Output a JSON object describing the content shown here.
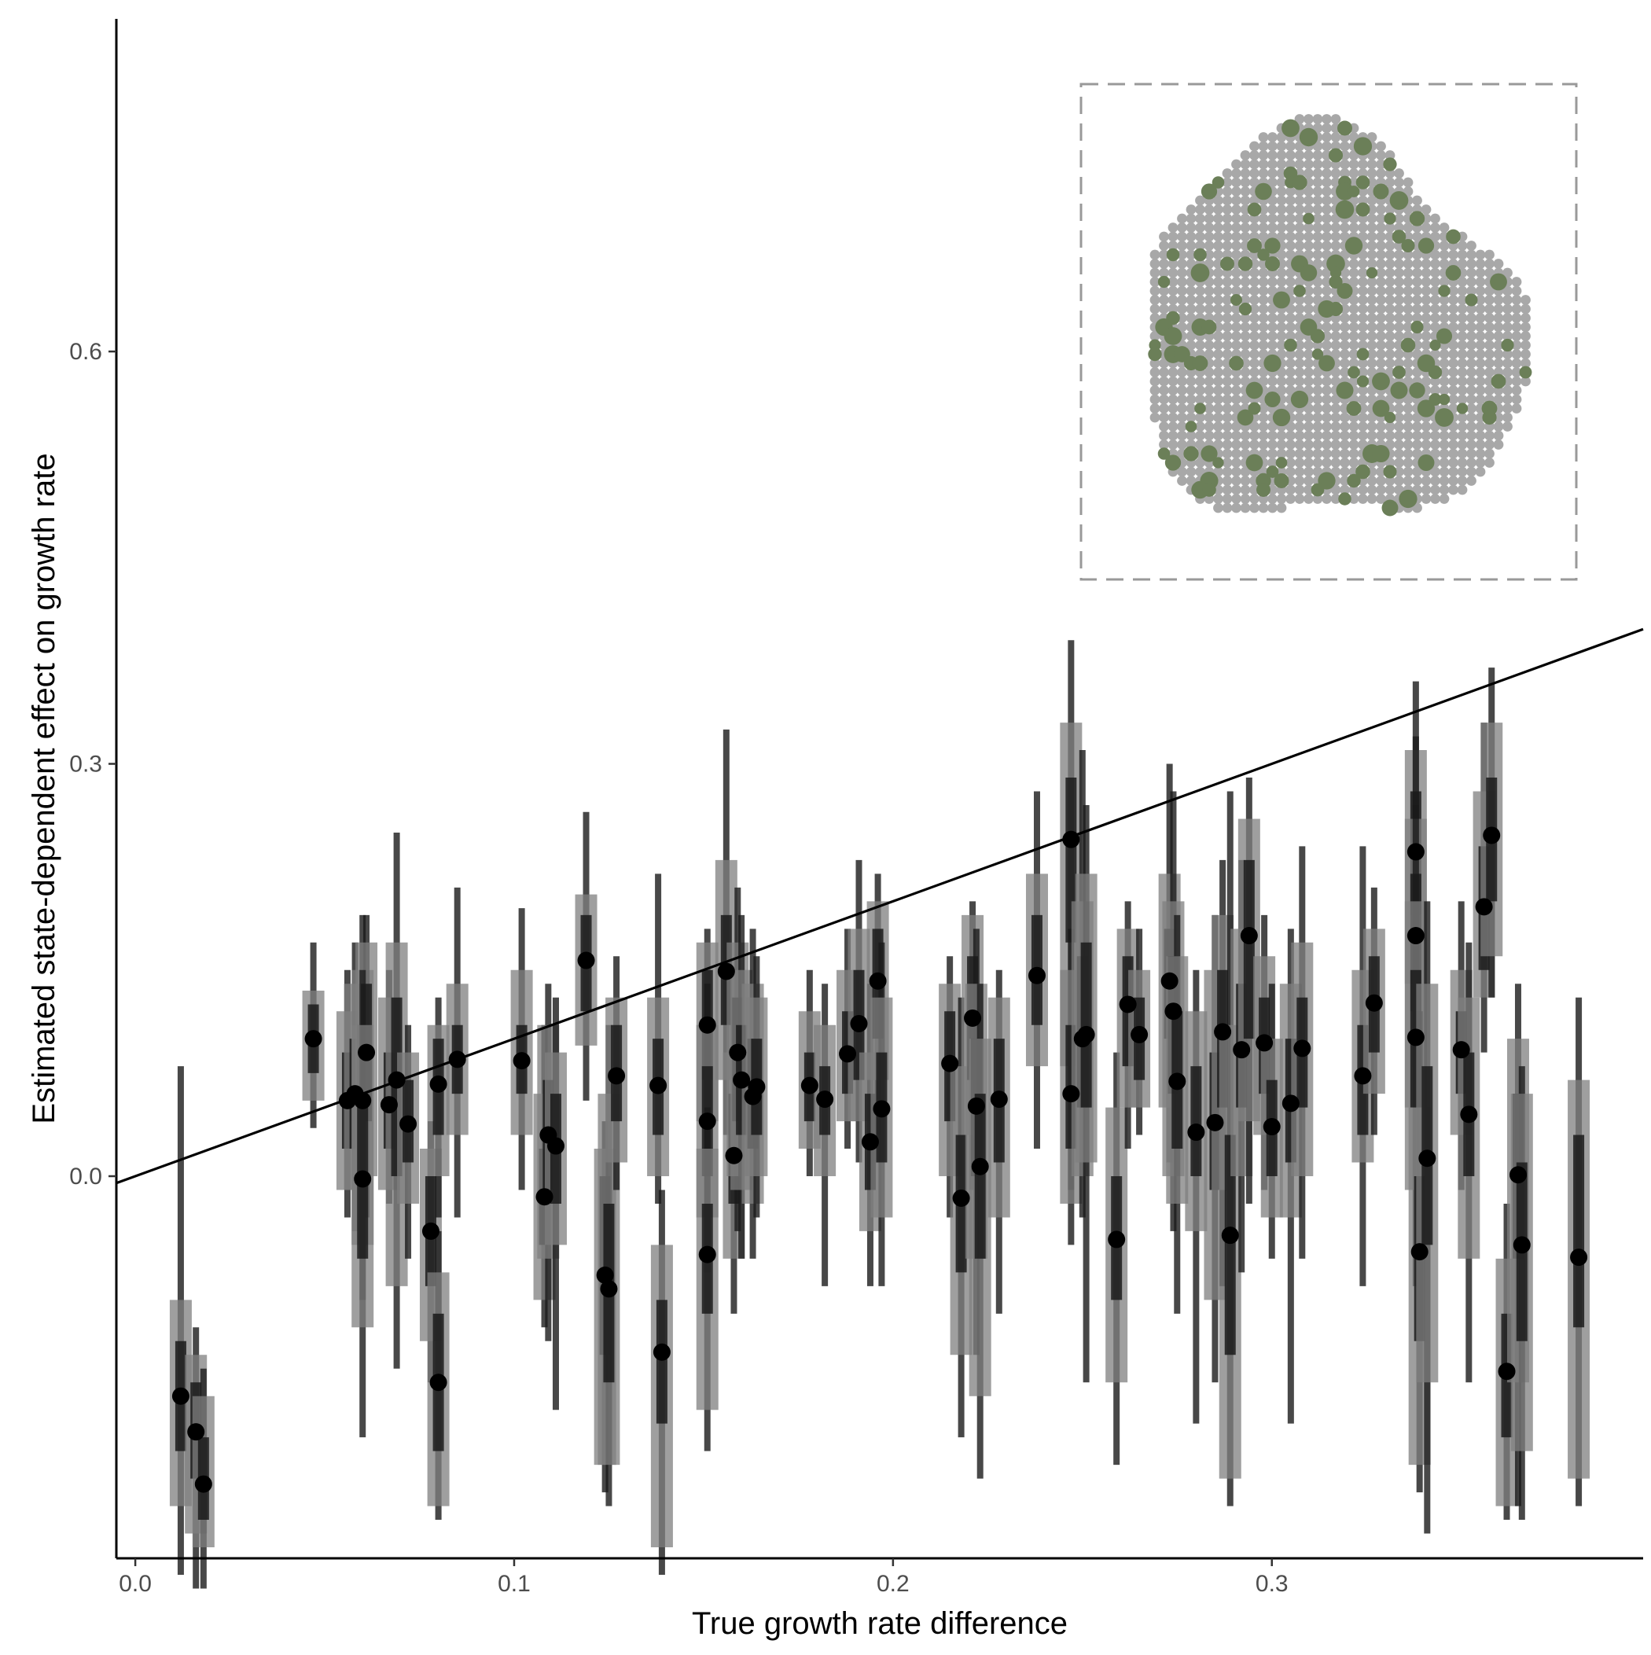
{
  "chart_data": {
    "type": "scatter",
    "xlabel": "True growth rate difference",
    "ylabel": "Estimated state-dependent effect on growth rate",
    "xlim": [
      -0.005,
      0.398
    ],
    "ylim": [
      -0.278,
      0.842
    ],
    "x_ticks": [
      "0.0",
      "0.1",
      "0.2",
      "0.3"
    ],
    "y_ticks": [
      "0.0",
      "0.3",
      "0.6"
    ],
    "grid": false,
    "legend": "none",
    "reference_line": {
      "intercept": 0.0,
      "slope": 1.0
    },
    "colors": {
      "points": "#000000",
      "interval_inner": "#1a1a1a",
      "interval_outer": "#7f7f7f",
      "line": "#000000",
      "inset_highlight": "#6b7f58",
      "inset_background": "#a8a8a8",
      "inset_frame": "#999999"
    },
    "points": [
      {
        "x": 0.012,
        "y": -0.16,
        "lo50": -0.2,
        "hi50": -0.12,
        "lo80": -0.24,
        "hi80": -0.09,
        "lo95": -0.29,
        "hi95": 0.08
      },
      {
        "x": 0.016,
        "y": -0.186,
        "lo50": -0.22,
        "hi50": -0.15,
        "lo80": -0.26,
        "hi80": -0.13,
        "lo95": -0.3,
        "hi95": -0.11
      },
      {
        "x": 0.018,
        "y": -0.224,
        "lo50": -0.25,
        "hi50": -0.19,
        "lo80": -0.27,
        "hi80": -0.16,
        "lo95": -0.3,
        "hi95": -0.14
      },
      {
        "x": 0.047,
        "y": 0.1,
        "lo50": 0.075,
        "hi50": 0.125,
        "lo80": 0.055,
        "hi80": 0.135,
        "lo95": 0.035,
        "hi95": 0.17
      },
      {
        "x": 0.056,
        "y": 0.055,
        "lo50": 0.02,
        "hi50": 0.09,
        "lo80": -0.01,
        "hi80": 0.12,
        "lo95": -0.03,
        "hi95": 0.15
      },
      {
        "x": 0.058,
        "y": 0.06,
        "lo50": 0.02,
        "hi50": 0.1,
        "lo80": -0.01,
        "hi80": 0.14,
        "lo95": -0.04,
        "hi95": 0.17
      },
      {
        "x": 0.06,
        "y": 0.055,
        "lo50": 0.0,
        "hi50": 0.11,
        "lo80": -0.05,
        "hi80": 0.15,
        "lo95": -0.09,
        "hi95": 0.19
      },
      {
        "x": 0.061,
        "y": 0.09,
        "lo50": 0.04,
        "hi50": 0.14,
        "lo80": 0.0,
        "hi80": 0.17,
        "lo95": -0.03,
        "hi95": 0.19
      },
      {
        "x": 0.06,
        "y": -0.002,
        "lo50": -0.06,
        "hi50": 0.06,
        "lo80": -0.11,
        "hi80": 0.11,
        "lo95": -0.19,
        "hi95": 0.15
      },
      {
        "x": 0.067,
        "y": 0.052,
        "lo50": 0.02,
        "hi50": 0.09,
        "lo80": -0.01,
        "hi80": 0.13,
        "lo95": -0.02,
        "hi95": 0.15
      },
      {
        "x": 0.069,
        "y": 0.07,
        "lo50": 0.0,
        "hi50": 0.13,
        "lo80": -0.08,
        "hi80": 0.17,
        "lo95": -0.14,
        "hi95": 0.25
      },
      {
        "x": 0.072,
        "y": 0.038,
        "lo50": 0.01,
        "hi50": 0.07,
        "lo80": -0.02,
        "hi80": 0.09,
        "lo95": -0.06,
        "hi95": 0.11
      },
      {
        "x": 0.078,
        "y": -0.04,
        "lo50": -0.08,
        "hi50": 0.0,
        "lo80": -0.12,
        "hi80": 0.02,
        "lo95": -0.15,
        "hi95": 0.04
      },
      {
        "x": 0.08,
        "y": 0.067,
        "lo50": 0.03,
        "hi50": 0.1,
        "lo80": 0.0,
        "hi80": 0.11,
        "lo95": -0.03,
        "hi95": 0.13
      },
      {
        "x": 0.08,
        "y": -0.15,
        "lo50": -0.2,
        "hi50": -0.1,
        "lo80": -0.24,
        "hi80": -0.07,
        "lo95": -0.25,
        "hi95": -0.04
      },
      {
        "x": 0.085,
        "y": 0.085,
        "lo50": 0.06,
        "hi50": 0.11,
        "lo80": 0.03,
        "hi80": 0.14,
        "lo95": -0.03,
        "hi95": 0.21
      },
      {
        "x": 0.102,
        "y": 0.084,
        "lo50": 0.06,
        "hi50": 0.11,
        "lo80": 0.03,
        "hi80": 0.15,
        "lo95": -0.01,
        "hi95": 0.195
      },
      {
        "x": 0.108,
        "y": -0.015,
        "lo50": -0.05,
        "hi50": 0.02,
        "lo80": -0.09,
        "hi80": 0.06,
        "lo95": -0.11,
        "hi95": 0.11
      },
      {
        "x": 0.109,
        "y": 0.03,
        "lo50": -0.01,
        "hi50": 0.07,
        "lo80": -0.06,
        "hi80": 0.11,
        "lo95": -0.12,
        "hi95": 0.14
      },
      {
        "x": 0.111,
        "y": 0.022,
        "lo50": -0.02,
        "hi50": 0.06,
        "lo80": -0.05,
        "hi80": 0.09,
        "lo95": -0.17,
        "hi95": 0.13
      },
      {
        "x": 0.119,
        "y": 0.157,
        "lo50": 0.12,
        "hi50": 0.19,
        "lo80": 0.095,
        "hi80": 0.205,
        "lo95": 0.055,
        "hi95": 0.265
      },
      {
        "x": 0.124,
        "y": -0.072,
        "lo50": -0.13,
        "hi50": 0.0,
        "lo80": -0.21,
        "hi80": 0.02,
        "lo95": -0.23,
        "hi95": 0.04
      },
      {
        "x": 0.125,
        "y": -0.082,
        "lo50": -0.15,
        "hi50": -0.02,
        "lo80": -0.21,
        "hi80": 0.06,
        "lo95": -0.24,
        "hi95": 0.11
      },
      {
        "x": 0.127,
        "y": 0.073,
        "lo50": 0.04,
        "hi50": 0.11,
        "lo80": 0.01,
        "hi80": 0.13,
        "lo95": -0.01,
        "hi95": 0.16
      },
      {
        "x": 0.138,
        "y": 0.066,
        "lo50": 0.03,
        "hi50": 0.1,
        "lo80": 0.0,
        "hi80": 0.13,
        "lo95": -0.02,
        "hi95": 0.22
      },
      {
        "x": 0.139,
        "y": -0.128,
        "lo50": -0.18,
        "hi50": -0.09,
        "lo80": -0.27,
        "hi80": -0.05,
        "lo95": -0.29,
        "hi95": -0.01
      },
      {
        "x": 0.151,
        "y": 0.11,
        "lo50": 0.07,
        "hi50": 0.15,
        "lo80": 0.04,
        "hi80": 0.17,
        "lo95": 0.01,
        "hi95": 0.18
      },
      {
        "x": 0.151,
        "y": 0.04,
        "lo50": 0.0,
        "hi50": 0.08,
        "lo80": -0.03,
        "hi80": 0.11,
        "lo95": -0.07,
        "hi95": 0.14
      },
      {
        "x": 0.151,
        "y": -0.057,
        "lo50": -0.1,
        "hi50": -0.02,
        "lo80": -0.17,
        "hi80": 0.02,
        "lo95": -0.2,
        "hi95": 0.05
      },
      {
        "x": 0.156,
        "y": 0.149,
        "lo50": 0.11,
        "hi50": 0.19,
        "lo80": 0.07,
        "hi80": 0.23,
        "lo95": 0.03,
        "hi95": 0.325
      },
      {
        "x": 0.158,
        "y": 0.015,
        "lo50": -0.02,
        "hi50": 0.06,
        "lo80": -0.06,
        "hi80": 0.09,
        "lo95": -0.1,
        "hi95": 0.13
      },
      {
        "x": 0.159,
        "y": 0.09,
        "lo50": 0.04,
        "hi50": 0.13,
        "lo80": 0.0,
        "hi80": 0.17,
        "lo95": -0.04,
        "hi95": 0.21
      },
      {
        "x": 0.16,
        "y": 0.07,
        "lo50": 0.03,
        "hi50": 0.11,
        "lo80": -0.01,
        "hi80": 0.15,
        "lo95": -0.06,
        "hi95": 0.19
      },
      {
        "x": 0.163,
        "y": 0.058,
        "lo50": 0.02,
        "hi50": 0.1,
        "lo80": -0.02,
        "hi80": 0.14,
        "lo95": -0.06,
        "hi95": 0.18
      },
      {
        "x": 0.164,
        "y": 0.065,
        "lo50": 0.03,
        "hi50": 0.1,
        "lo80": 0.0,
        "hi80": 0.13,
        "lo95": -0.03,
        "hi95": 0.16
      },
      {
        "x": 0.178,
        "y": 0.066,
        "lo50": 0.04,
        "hi50": 0.09,
        "lo80": 0.02,
        "hi80": 0.12,
        "lo95": 0.0,
        "hi95": 0.15
      },
      {
        "x": 0.182,
        "y": 0.056,
        "lo50": 0.03,
        "hi50": 0.08,
        "lo80": 0.0,
        "hi80": 0.11,
        "lo95": -0.08,
        "hi95": 0.14
      },
      {
        "x": 0.188,
        "y": 0.089,
        "lo50": 0.06,
        "hi50": 0.12,
        "lo80": 0.04,
        "hi80": 0.15,
        "lo95": 0.02,
        "hi95": 0.18
      },
      {
        "x": 0.191,
        "y": 0.111,
        "lo50": 0.07,
        "hi50": 0.15,
        "lo80": 0.04,
        "hi80": 0.18,
        "lo95": 0.01,
        "hi95": 0.23
      },
      {
        "x": 0.194,
        "y": 0.025,
        "lo50": -0.01,
        "hi50": 0.06,
        "lo80": -0.04,
        "hi80": 0.09,
        "lo95": -0.08,
        "hi95": 0.14
      },
      {
        "x": 0.196,
        "y": 0.142,
        "lo50": 0.1,
        "hi50": 0.18,
        "lo80": 0.07,
        "hi80": 0.2,
        "lo95": 0.03,
        "hi95": 0.22
      },
      {
        "x": 0.197,
        "y": 0.049,
        "lo50": 0.01,
        "hi50": 0.09,
        "lo80": -0.03,
        "hi80": 0.13,
        "lo95": -0.08,
        "hi95": 0.17
      },
      {
        "x": 0.215,
        "y": 0.082,
        "lo50": 0.04,
        "hi50": 0.12,
        "lo80": 0.0,
        "hi80": 0.14,
        "lo95": -0.03,
        "hi95": 0.16
      },
      {
        "x": 0.218,
        "y": -0.016,
        "lo50": -0.07,
        "hi50": 0.03,
        "lo80": -0.13,
        "hi80": 0.08,
        "lo95": -0.19,
        "hi95": 0.13
      },
      {
        "x": 0.221,
        "y": 0.115,
        "lo50": 0.07,
        "hi50": 0.16,
        "lo80": 0.03,
        "hi80": 0.19,
        "lo95": -0.01,
        "hi95": 0.2
      },
      {
        "x": 0.222,
        "y": 0.051,
        "lo50": 0.0,
        "hi50": 0.1,
        "lo80": -0.06,
        "hi80": 0.14,
        "lo95": -0.13,
        "hi95": 0.18
      },
      {
        "x": 0.223,
        "y": 0.007,
        "lo50": -0.06,
        "hi50": 0.06,
        "lo80": -0.16,
        "hi80": 0.1,
        "lo95": -0.22,
        "hi95": 0.14
      },
      {
        "x": 0.228,
        "y": 0.056,
        "lo50": 0.01,
        "hi50": 0.1,
        "lo80": -0.03,
        "hi80": 0.13,
        "lo95": -0.1,
        "hi95": 0.15
      },
      {
        "x": 0.238,
        "y": 0.146,
        "lo50": 0.11,
        "hi50": 0.19,
        "lo80": 0.08,
        "hi80": 0.22,
        "lo95": 0.02,
        "hi95": 0.28
      },
      {
        "x": 0.247,
        "y": 0.245,
        "lo50": 0.17,
        "hi50": 0.29,
        "lo80": 0.08,
        "hi80": 0.33,
        "lo95": -0.01,
        "hi95": 0.39
      },
      {
        "x": 0.247,
        "y": 0.06,
        "lo50": 0.02,
        "hi50": 0.11,
        "lo80": -0.02,
        "hi80": 0.15,
        "lo95": -0.05,
        "hi95": 0.18
      },
      {
        "x": 0.25,
        "y": 0.1,
        "lo50": 0.05,
        "hi50": 0.16,
        "lo80": 0.0,
        "hi80": 0.2,
        "lo95": -0.03,
        "hi95": 0.31
      },
      {
        "x": 0.251,
        "y": 0.103,
        "lo50": 0.05,
        "hi50": 0.17,
        "lo80": 0.01,
        "hi80": 0.22,
        "lo95": -0.15,
        "hi95": 0.27
      },
      {
        "x": 0.259,
        "y": -0.046,
        "lo50": -0.09,
        "hi50": 0.0,
        "lo80": -0.15,
        "hi80": 0.05,
        "lo95": -0.21,
        "hi95": 0.09
      },
      {
        "x": 0.262,
        "y": 0.125,
        "lo50": 0.08,
        "hi50": 0.16,
        "lo80": 0.05,
        "hi80": 0.18,
        "lo95": 0.02,
        "hi95": 0.2
      },
      {
        "x": 0.265,
        "y": 0.103,
        "lo50": 0.07,
        "hi50": 0.13,
        "lo80": 0.05,
        "hi80": 0.15,
        "lo95": 0.03,
        "hi95": 0.18
      },
      {
        "x": 0.273,
        "y": 0.142,
        "lo50": 0.1,
        "hi50": 0.18,
        "lo80": 0.05,
        "hi80": 0.22,
        "lo95": 0.01,
        "hi95": 0.3
      },
      {
        "x": 0.274,
        "y": 0.12,
        "lo50": 0.06,
        "hi50": 0.16,
        "lo80": 0.0,
        "hi80": 0.2,
        "lo95": -0.04,
        "hi95": 0.28
      },
      {
        "x": 0.275,
        "y": 0.069,
        "lo50": 0.02,
        "hi50": 0.12,
        "lo80": -0.02,
        "hi80": 0.16,
        "lo95": -0.1,
        "hi95": 0.19
      },
      {
        "x": 0.28,
        "y": 0.032,
        "lo50": 0.0,
        "hi50": 0.08,
        "lo80": -0.04,
        "hi80": 0.12,
        "lo95": -0.18,
        "hi95": 0.15
      },
      {
        "x": 0.285,
        "y": 0.039,
        "lo50": -0.01,
        "hi50": 0.09,
        "lo80": -0.09,
        "hi80": 0.15,
        "lo95": -0.15,
        "hi95": 0.19
      },
      {
        "x": 0.287,
        "y": 0.105,
        "lo50": 0.05,
        "hi50": 0.15,
        "lo80": -0.01,
        "hi80": 0.19,
        "lo95": -0.08,
        "hi95": 0.23
      },
      {
        "x": 0.289,
        "y": -0.043,
        "lo50": -0.13,
        "hi50": 0.03,
        "lo80": -0.22,
        "hi80": 0.11,
        "lo95": -0.24,
        "hi95": 0.28
      },
      {
        "x": 0.292,
        "y": 0.092,
        "lo50": 0.05,
        "hi50": 0.14,
        "lo80": 0.0,
        "hi80": 0.18,
        "lo95": -0.07,
        "hi95": 0.23
      },
      {
        "x": 0.294,
        "y": 0.175,
        "lo50": 0.1,
        "hi50": 0.23,
        "lo80": 0.04,
        "hi80": 0.26,
        "lo95": -0.02,
        "hi95": 0.29
      },
      {
        "x": 0.298,
        "y": 0.097,
        "lo50": 0.06,
        "hi50": 0.13,
        "lo80": 0.03,
        "hi80": 0.16,
        "lo95": -0.01,
        "hi95": 0.19
      },
      {
        "x": 0.3,
        "y": 0.036,
        "lo50": 0.0,
        "hi50": 0.07,
        "lo80": -0.03,
        "hi80": 0.1,
        "lo95": -0.06,
        "hi95": 0.14
      },
      {
        "x": 0.305,
        "y": 0.053,
        "lo50": 0.01,
        "hi50": 0.1,
        "lo80": -0.03,
        "hi80": 0.14,
        "lo95": -0.18,
        "hi95": 0.18
      },
      {
        "x": 0.308,
        "y": 0.093,
        "lo50": 0.05,
        "hi50": 0.13,
        "lo80": 0.0,
        "hi80": 0.17,
        "lo95": -0.06,
        "hi95": 0.24
      },
      {
        "x": 0.324,
        "y": 0.073,
        "lo50": 0.03,
        "hi50": 0.11,
        "lo80": 0.01,
        "hi80": 0.15,
        "lo95": -0.08,
        "hi95": 0.24
      },
      {
        "x": 0.327,
        "y": 0.126,
        "lo50": 0.09,
        "hi50": 0.16,
        "lo80": 0.06,
        "hi80": 0.18,
        "lo95": 0.03,
        "hi95": 0.21
      },
      {
        "x": 0.338,
        "y": 0.236,
        "lo50": 0.19,
        "hi50": 0.28,
        "lo80": 0.14,
        "hi80": 0.31,
        "lo95": 0.08,
        "hi95": 0.36
      },
      {
        "x": 0.338,
        "y": 0.175,
        "lo50": 0.12,
        "hi50": 0.22,
        "lo80": 0.05,
        "hi80": 0.26,
        "lo95": -0.01,
        "hi95": 0.32
      },
      {
        "x": 0.338,
        "y": 0.101,
        "lo50": 0.05,
        "hi50": 0.15,
        "lo80": -0.01,
        "hi80": 0.2,
        "lo95": -0.08,
        "hi95": 0.27
      },
      {
        "x": 0.339,
        "y": -0.055,
        "lo50": -0.12,
        "hi50": 0.0,
        "lo80": -0.21,
        "hi80": 0.05,
        "lo95": -0.23,
        "hi95": 0.12
      },
      {
        "x": 0.341,
        "y": 0.013,
        "lo50": -0.05,
        "hi50": 0.08,
        "lo80": -0.15,
        "hi80": 0.14,
        "lo95": -0.26,
        "hi95": 0.2
      },
      {
        "x": 0.35,
        "y": 0.092,
        "lo50": 0.06,
        "hi50": 0.12,
        "lo80": 0.03,
        "hi80": 0.15,
        "lo95": -0.01,
        "hi95": 0.2
      },
      {
        "x": 0.352,
        "y": 0.045,
        "lo50": 0.0,
        "hi50": 0.09,
        "lo80": -0.06,
        "hi80": 0.13,
        "lo95": -0.15,
        "hi95": 0.17
      },
      {
        "x": 0.356,
        "y": 0.196,
        "lo50": 0.15,
        "hi50": 0.24,
        "lo80": 0.13,
        "hi80": 0.28,
        "lo95": 0.09,
        "hi95": 0.33
      },
      {
        "x": 0.358,
        "y": 0.248,
        "lo50": 0.2,
        "hi50": 0.29,
        "lo80": 0.16,
        "hi80": 0.33,
        "lo95": 0.13,
        "hi95": 0.37
      },
      {
        "x": 0.362,
        "y": -0.142,
        "lo50": -0.19,
        "hi50": -0.1,
        "lo80": -0.24,
        "hi80": -0.06,
        "lo95": -0.25,
        "hi95": -0.02
      },
      {
        "x": 0.365,
        "y": 0.001,
        "lo50": -0.06,
        "hi50": 0.06,
        "lo80": -0.15,
        "hi80": 0.1,
        "lo95": -0.24,
        "hi95": 0.14
      },
      {
        "x": 0.366,
        "y": -0.05,
        "lo50": -0.12,
        "hi50": 0.01,
        "lo80": -0.2,
        "hi80": 0.06,
        "lo95": -0.25,
        "hi95": 0.08
      },
      {
        "x": 0.381,
        "y": -0.059,
        "lo50": -0.11,
        "hi50": 0.03,
        "lo80": -0.22,
        "hi80": 0.07,
        "lo95": -0.24,
        "hi95": 0.13
      }
    ]
  }
}
